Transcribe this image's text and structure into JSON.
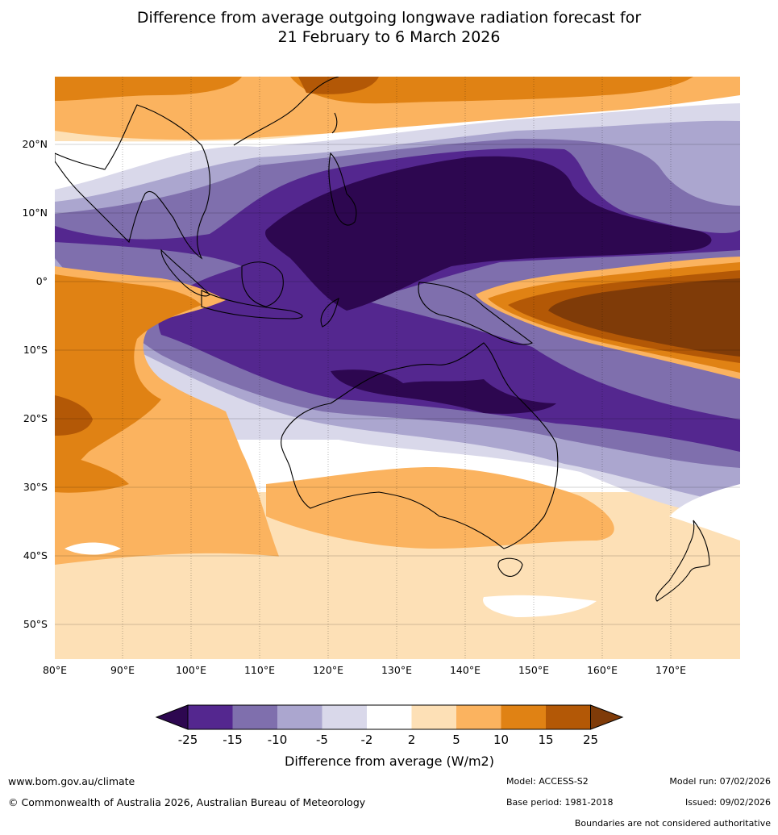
{
  "title": {
    "line1": "Difference from average outgoing longwave radiation forecast for",
    "line2": "21 February to 6 March 2026"
  },
  "map": {
    "region": "Indo-Pacific and Australia",
    "longitude_labels": [
      "80°E",
      "90°E",
      "100°E",
      "110°E",
      "120°E",
      "130°E",
      "140°E",
      "150°E",
      "160°E",
      "170°E"
    ],
    "latitude_labels": [
      "20°N",
      "10°N",
      "0°",
      "10°S",
      "20°S",
      "30°S",
      "40°S",
      "50°S"
    ]
  },
  "legend": {
    "tick_labels": [
      "-25",
      "-15",
      "-10",
      "-5",
      "-2",
      "2",
      "5",
      "10",
      "15",
      "25"
    ],
    "label": "Difference from average (W/m2)",
    "colors": [
      "#2d0750",
      "#54278f",
      "#7f6fad",
      "#aba6cf",
      "#d9d8ea",
      "#ffffff",
      "#fde0b6",
      "#fbb35f",
      "#e08214",
      "#b35806",
      "#7f3b08"
    ]
  },
  "footer": {
    "website": "www.bom.gov.au/climate",
    "copyright": "© Commonwealth of Australia 2026, Australian Bureau of Meteorology",
    "model": "Model: ACCESS-S2",
    "base_period": "Base period: 1981-2018",
    "model_run": "Model run: 07/02/2026",
    "issued": "Issued: 09/02/2026",
    "disclaimer": "Boundaries are not considered authoritative"
  }
}
